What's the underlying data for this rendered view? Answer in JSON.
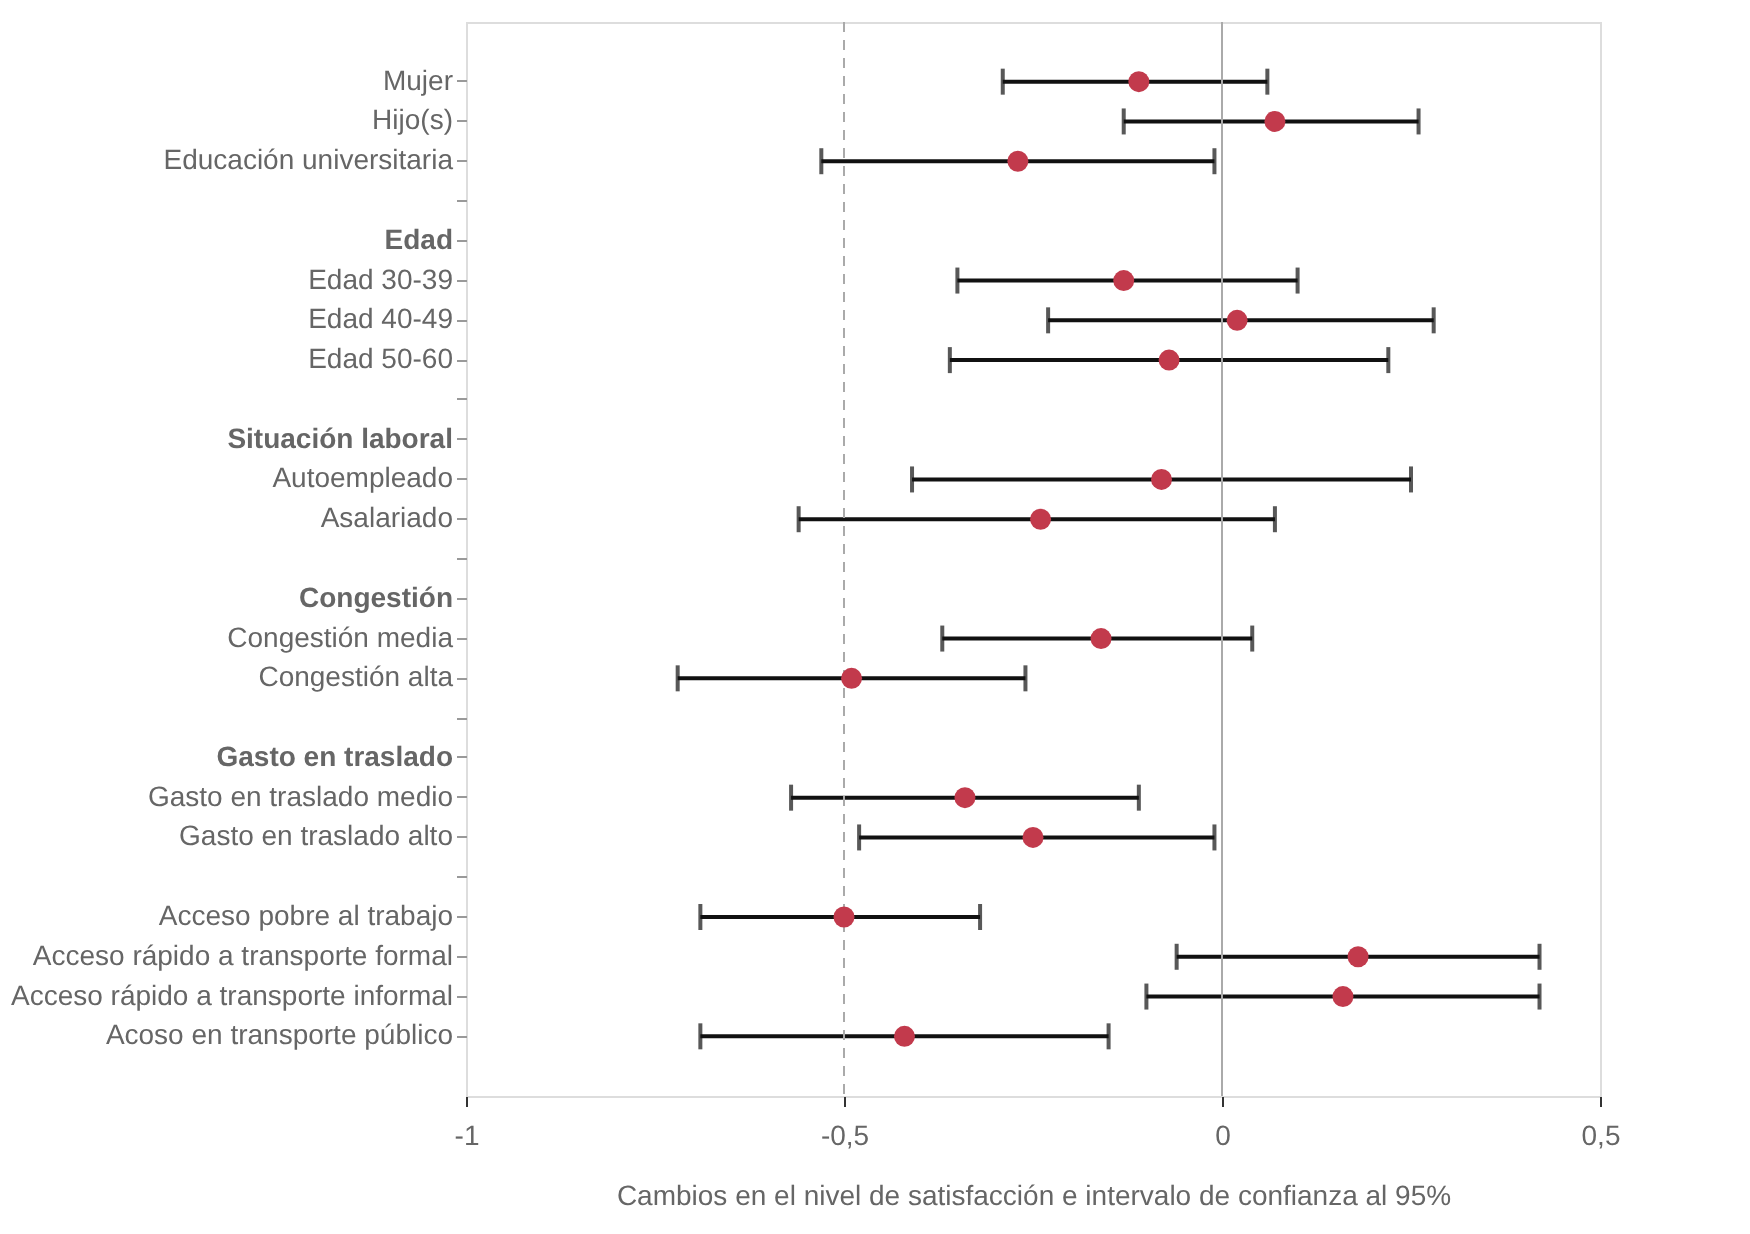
{
  "chart_data": {
    "type": "scatter",
    "orientation": "horizontal",
    "categories": [
      "Mujer",
      "Hijo(s)",
      "Educación universitaria",
      null,
      "Edad",
      "Edad 30-39",
      "Edad 40-49",
      "Edad 50-60",
      null,
      "Situación laboral",
      "Autoempleado",
      "Asalariado",
      null,
      "Congestión",
      "Congestión media",
      "Congestión alta",
      null,
      "Gasto en traslado",
      "Gasto en traslado medio",
      "Gasto en traslado alto",
      null,
      "Acceso pobre al trabajo",
      "Acceso rápido a transporte formal",
      "Acceso rápido a transporte informal",
      "Acoso en transporte público"
    ],
    "values": [
      -0.11,
      0.07,
      -0.27,
      null,
      null,
      -0.13,
      0.02,
      -0.07,
      null,
      null,
      -0.08,
      -0.24,
      null,
      null,
      -0.16,
      -0.49,
      null,
      null,
      -0.34,
      -0.25,
      null,
      -0.5,
      0.18,
      0.16,
      -0.42
    ],
    "errors": [
      [
        -0.29,
        0.06
      ],
      [
        -0.13,
        0.26
      ],
      [
        -0.53,
        -0.01
      ],
      null,
      null,
      [
        -0.35,
        0.1
      ],
      [
        -0.23,
        0.28
      ],
      [
        -0.36,
        0.22
      ],
      null,
      null,
      [
        -0.41,
        0.25
      ],
      [
        -0.56,
        0.07
      ],
      null,
      null,
      [
        -0.37,
        0.04
      ],
      [
        -0.72,
        -0.26
      ],
      null,
      null,
      [
        -0.57,
        -0.11
      ],
      [
        -0.48,
        -0.01
      ],
      null,
      [
        -0.69,
        -0.32
      ],
      [
        -0.06,
        0.42
      ],
      [
        -0.1,
        0.42
      ],
      [
        -0.69,
        -0.15
      ]
    ],
    "color": "#c23a4c",
    "marker": "circle",
    "grid": false,
    "xlim": [
      -1,
      0.5
    ],
    "xticks": [
      {
        "value": -1,
        "label": "-1"
      },
      {
        "value": -0.5,
        "label": "-0,5"
      },
      {
        "value": 0,
        "label": "0"
      },
      {
        "value": 0.5,
        "label": "0,5"
      }
    ],
    "xlabel": "Cambios en el nivel de satisfacción e intervalo de confianza al 95%",
    "ref_lines": [
      {
        "axis": "x",
        "value": -0.5,
        "color": "#aaaaaa",
        "line_style": "dashed"
      },
      {
        "axis": "x",
        "value": 0,
        "color": "#aaaaaa",
        "line_style": "solid"
      }
    ]
  }
}
